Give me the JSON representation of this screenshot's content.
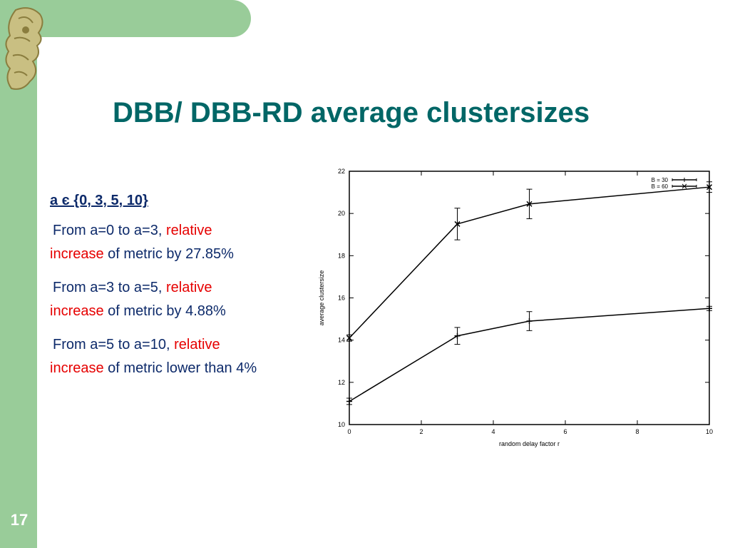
{
  "slide": {
    "title": "DBB/ DBB-RD average clustersizes",
    "page_number": "17",
    "colors": {
      "accent_bar": "#99cc99",
      "title": "#006666",
      "body_text": "#0d2a6a",
      "highlight": "#e60000"
    }
  },
  "text": {
    "set_line": "a є {0, 3, 5, 10}",
    "paragraphs": [
      {
        "a": "From a=0 to a=3, ",
        "red1": "relative",
        "red2": "increase",
        "b": " of metric by 27.85%"
      },
      {
        "a": "From a=3 to a=5, ",
        "red1": "relative",
        "red2": "increase",
        "b": " of metric by 4.88%"
      },
      {
        "a": "From a=5 to a=10, ",
        "red1": "relative",
        "red2": "increase",
        "b": " of metric lower than 4%"
      }
    ]
  },
  "chart_data": {
    "type": "line",
    "xlabel": "random delay factor r",
    "ylabel": "average clustersize",
    "xlim": [
      0,
      10
    ],
    "ylim": [
      10,
      22
    ],
    "xticks": [
      0,
      2,
      4,
      6,
      8,
      10
    ],
    "yticks": [
      10,
      12,
      14,
      16,
      18,
      20,
      22
    ],
    "legend_position": "top-right",
    "series": [
      {
        "name": "B = 30",
        "x": [
          0,
          3,
          5,
          10
        ],
        "values": [
          11.1,
          14.2,
          14.9,
          15.5
        ],
        "err": [
          0.15,
          0.4,
          0.45,
          0.1
        ]
      },
      {
        "name": "B = 60",
        "x": [
          0,
          3,
          5,
          10
        ],
        "values": [
          14.1,
          19.5,
          20.45,
          21.25
        ],
        "err": [
          0.15,
          0.75,
          0.7,
          0.25
        ]
      }
    ]
  }
}
